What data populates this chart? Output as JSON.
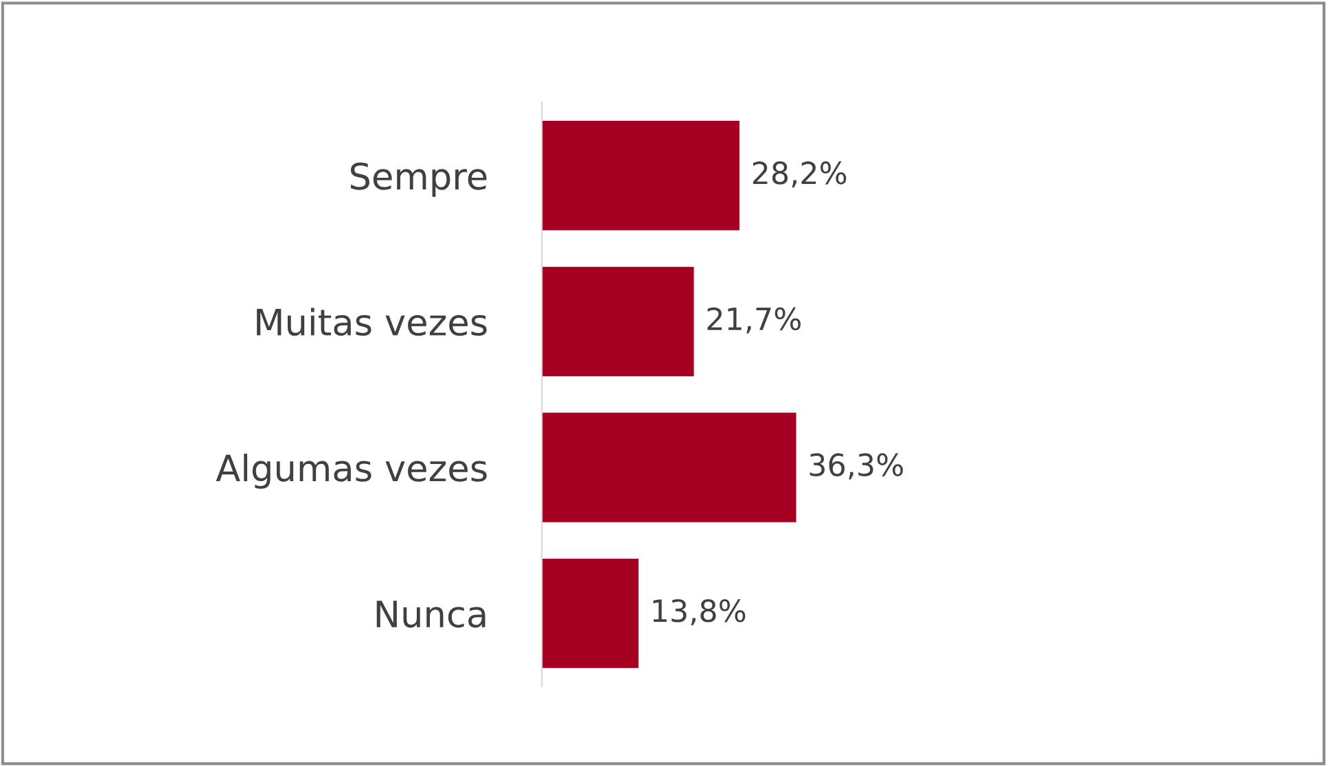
{
  "chart_data": {
    "type": "bar",
    "orientation": "horizontal",
    "categories": [
      "Sempre",
      "Muitas vezes",
      "Algumas vezes",
      "Nunca"
    ],
    "values": [
      28.2,
      21.7,
      36.3,
      13.8
    ],
    "value_labels": [
      "28,2%",
      "21,7%",
      "36,3%",
      "13,8%"
    ],
    "color": "#a50021",
    "grid": false,
    "legend": false
  }
}
